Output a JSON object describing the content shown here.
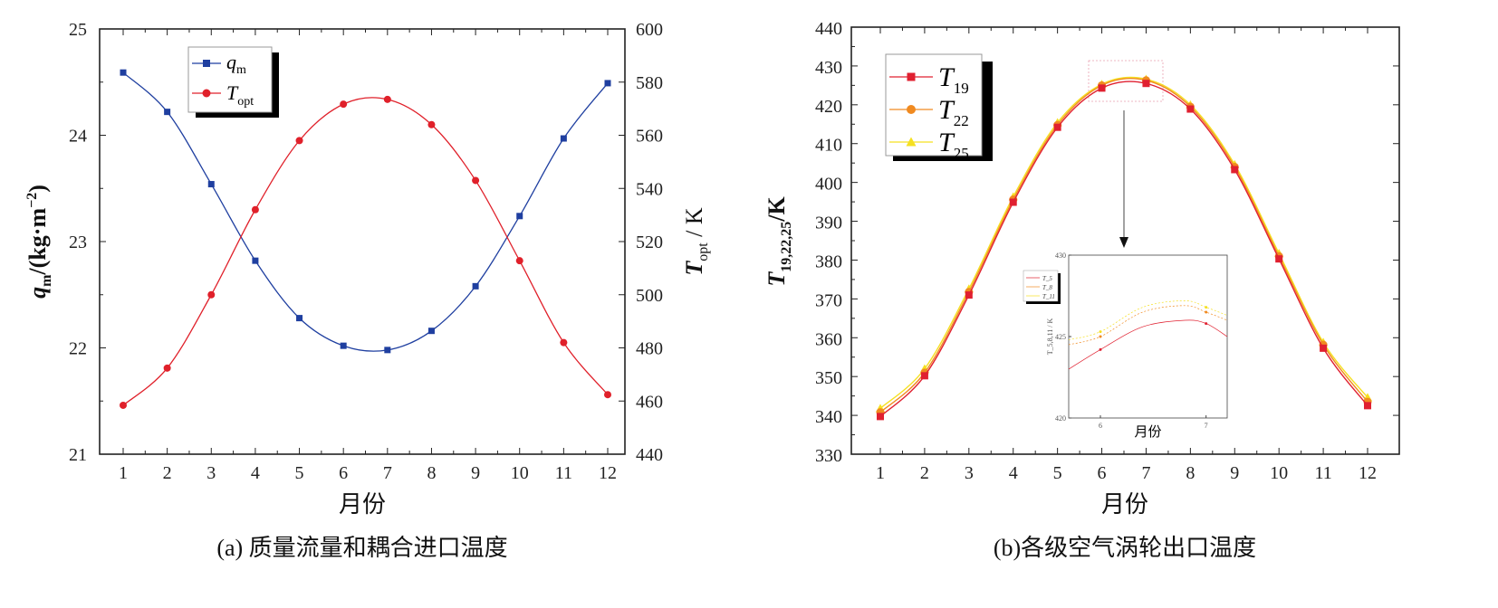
{
  "chart_data": [
    {
      "type": "line",
      "caption": "(a) 质量流量和耦合进口温度",
      "xlabel": "月份",
      "ylabel": "q_m/(kg·m^-2)",
      "ylabel_main": "q",
      "ylabel_sub": "m",
      "ylabel_rest": "/(kg·m",
      "ylabel_sup": "−2",
      "ylabel_close": ")",
      "y2label_main": "T",
      "y2label_sub": "opt",
      "y2label_rest": " / K",
      "x": [
        1,
        2,
        3,
        4,
        5,
        6,
        7,
        8,
        9,
        10,
        11,
        12
      ],
      "xticks": [
        "1",
        "2",
        "3",
        "4",
        "5",
        "6",
        "7",
        "8",
        "9",
        "10",
        "11",
        "12"
      ],
      "ylim": [
        21,
        25
      ],
      "yticks": [
        "21",
        "22",
        "23",
        "24",
        "25"
      ],
      "y2lim": [
        440,
        600
      ],
      "y2ticks": [
        "440",
        "460",
        "480",
        "500",
        "520",
        "540",
        "560",
        "580",
        "600"
      ],
      "legend_position": "top-left",
      "series": [
        {
          "name": "q_m",
          "label_main": "q",
          "label_sub": "m",
          "axis": "left",
          "color": "#1f3fa0",
          "marker": "square",
          "values": [
            24.59,
            24.22,
            23.54,
            22.82,
            22.28,
            22.02,
            21.98,
            22.16,
            22.58,
            23.24,
            23.97,
            24.49
          ]
        },
        {
          "name": "T_opt",
          "label_main": "T",
          "label_sub": "opt",
          "axis": "right",
          "color": "#e0202a",
          "marker": "circle",
          "values": [
            458.4,
            472.4,
            500.0,
            532.0,
            558.0,
            571.7,
            573.5,
            564.0,
            543.0,
            512.8,
            482.0,
            462.4
          ]
        }
      ]
    },
    {
      "type": "line",
      "caption": "(b)各级空气涡轮出口温度",
      "xlabel": "月份",
      "ylabel": "T_19,22,25/K",
      "ylabel_main": "T",
      "ylabel_sub": "19,22,25",
      "ylabel_rest": "/K",
      "x": [
        1,
        2,
        3,
        4,
        5,
        6,
        7,
        8,
        9,
        10,
        11,
        12
      ],
      "xticks": [
        "1",
        "2",
        "3",
        "4",
        "5",
        "6",
        "7",
        "8",
        "9",
        "10",
        "11",
        "12"
      ],
      "ylim": [
        330,
        440
      ],
      "yticks": [
        "330",
        "340",
        "350",
        "360",
        "370",
        "380",
        "390",
        "400",
        "410",
        "420",
        "430",
        "440"
      ],
      "legend_position": "top-left",
      "series": [
        {
          "name": "T_19",
          "label_main": "T",
          "label_sub": "19",
          "color": "#e02030",
          "marker": "square",
          "values": [
            339.7,
            350.2,
            371.0,
            394.9,
            414.2,
            424.3,
            425.5,
            418.9,
            403.3,
            380.3,
            357.3,
            342.5
          ]
        },
        {
          "name": "T_22",
          "label_main": "T",
          "label_sub": "22",
          "color": "#f08a20",
          "marker": "circle",
          "values": [
            340.8,
            351.0,
            371.8,
            395.6,
            414.8,
            425.0,
            426.3,
            419.5,
            404.0,
            381.0,
            358.2,
            343.5
          ]
        },
        {
          "name": "T_25",
          "label_main": "T",
          "label_sub": "25",
          "color": "#f5e020",
          "marker": "triangle",
          "values": [
            341.8,
            352.0,
            372.6,
            396.3,
            415.4,
            425.3,
            426.6,
            420.0,
            404.6,
            381.7,
            358.8,
            344.6
          ]
        }
      ],
      "inset": {
        "xlabel": "月份",
        "ylabel": "T_5,8,11 / K",
        "xlim": [
          5.7,
          7.2
        ],
        "xticks": [
          "6",
          "7"
        ],
        "ylim": [
          420,
          430
        ],
        "yticks": [
          "420",
          "425",
          "430"
        ],
        "legend": [
          "T_5",
          "T_8",
          "T_11"
        ]
      }
    }
  ]
}
